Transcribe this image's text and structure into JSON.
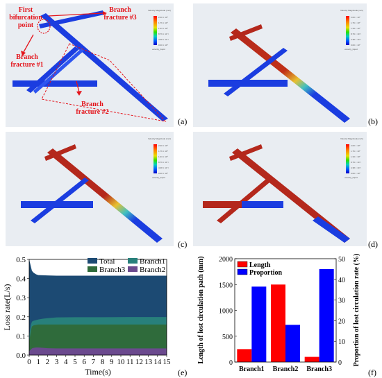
{
  "panel_labels": [
    "(a)",
    "(b)",
    "(c)",
    "(d)",
    "(e)",
    "(f)"
  ],
  "annotations": {
    "first_bifurcation": "First bifurcation point",
    "branch3": "Branch fracture #3",
    "branch1": "Branch fracture #1",
    "branch2": "Branch fracture #2"
  },
  "colorbar": {
    "title": "Velocity Magnitude (m/s)",
    "var_label": "velocity_liquid",
    "ticks": [
      "2.00 × 10⁰",
      "1.96 × 10⁰",
      "1.76 × 10⁰",
      "1.54 × 10⁰",
      "1.33 × 10⁰",
      "1.12 × 10⁰",
      "8.79 × 10⁻¹",
      "6.58 × 10⁻¹",
      "4.38 × 10⁻¹",
      "2.20 × 10⁻¹",
      "0.00 × 10⁰"
    ]
  },
  "colors": {
    "total": "#1c4a73",
    "branch1": "#28807b",
    "branch3": "#2f6b3b",
    "branch2": "#6b4a8e",
    "length": "#ff0000",
    "proportion": "#0000ff",
    "fracture_blue": "#1b3de0",
    "fracture_red": "#b4281c"
  },
  "chart_data": [
    {
      "type": "area",
      "xlabel": "Time(s)",
      "ylabel": "Loss rate(L/s)",
      "xlim": [
        0,
        15
      ],
      "ylim": [
        0,
        0.5
      ],
      "xticks": [
        "0",
        "1",
        "2",
        "3",
        "4",
        "5",
        "6",
        "7",
        "8",
        "9",
        "10",
        "11",
        "12",
        "13",
        "14",
        "15"
      ],
      "yticks": [
        "0.0",
        "0.1",
        "0.2",
        "0.3",
        "0.4",
        "0.5"
      ],
      "legend": "top",
      "x": [
        0,
        0.1,
        0.2,
        0.3,
        0.5,
        0.75,
        1,
        1.5,
        2,
        3,
        5,
        8,
        11,
        15
      ],
      "series": [
        {
          "name": "Total",
          "values": [
            0.5,
            0.48,
            0.46,
            0.44,
            0.43,
            0.422,
            0.418,
            0.417,
            0.416,
            0.415,
            0.415,
            0.415,
            0.415,
            0.415
          ]
        },
        {
          "name": "Branch1",
          "values": [
            0.1,
            0.13,
            0.16,
            0.175,
            0.18,
            0.183,
            0.186,
            0.19,
            0.193,
            0.197,
            0.198,
            0.198,
            0.199,
            0.199
          ]
        },
        {
          "name": "Branch3",
          "values": [
            0.07,
            0.1,
            0.13,
            0.15,
            0.156,
            0.158,
            0.16,
            0.16,
            0.16,
            0.16,
            0.16,
            0.16,
            0.16,
            0.16
          ]
        },
        {
          "name": "Branch2",
          "values": [
            0.02,
            0.025,
            0.03,
            0.035,
            0.038,
            0.04,
            0.04,
            0.038,
            0.036,
            0.035,
            0.035,
            0.035,
            0.035,
            0.035
          ]
        }
      ],
      "legend_order": [
        "Total",
        "Branch1",
        "Branch3",
        "Branch2"
      ]
    },
    {
      "type": "bar",
      "categories": [
        "Branch1",
        "Branch2",
        "Branch3"
      ],
      "ylabel_left": "Length of lost circulation path (mm)",
      "ylabel_right": "Proportion of lost circulation rate (%)",
      "ylim_left": [
        0,
        2000
      ],
      "ylim_right": [
        0,
        50
      ],
      "yticks_left": [
        "0",
        "500",
        "1000",
        "1500",
        "2000"
      ],
      "yticks_right": [
        "0",
        "10",
        "20",
        "30",
        "40",
        "50"
      ],
      "legend": "top-left",
      "series": [
        {
          "name": "Length",
          "axis": "left",
          "values": [
            250,
            1500,
            100
          ]
        },
        {
          "name": "Proportion",
          "axis": "right",
          "values": [
            36.5,
            18,
            45
          ]
        }
      ]
    }
  ]
}
